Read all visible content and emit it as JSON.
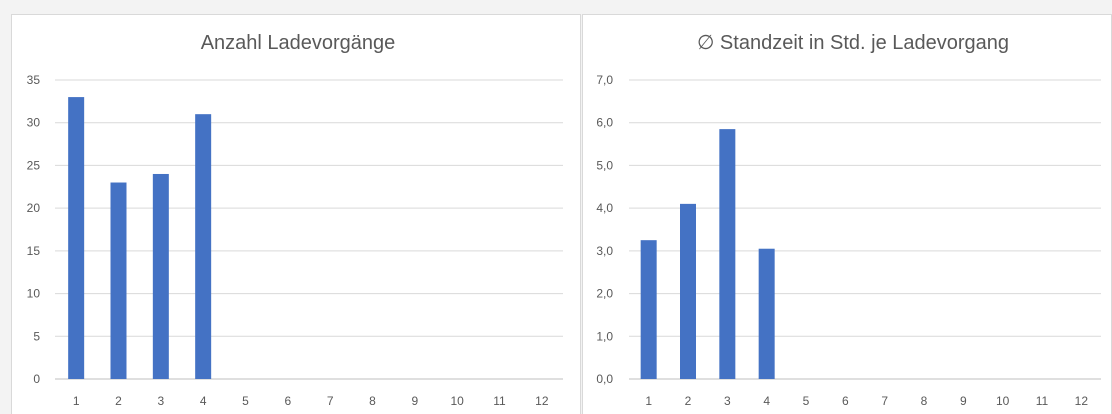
{
  "chart_data": [
    {
      "type": "bar",
      "title": "Anzahl Ladevorgänge",
      "xlabel": "",
      "ylabel": "",
      "categories": [
        "1",
        "2",
        "3",
        "4",
        "5",
        "6",
        "7",
        "8",
        "9",
        "10",
        "11",
        "12"
      ],
      "values": [
        33,
        23,
        24,
        31,
        null,
        null,
        null,
        null,
        null,
        null,
        null,
        null
      ],
      "ylim": [
        0,
        35
      ],
      "yticks": [
        "0",
        "5",
        "10",
        "15",
        "20",
        "25",
        "30",
        "35"
      ],
      "grid": true,
      "bar_color": "#4472c4"
    },
    {
      "type": "bar",
      "title": "∅ Standzeit in Std. je Ladevorgang",
      "xlabel": "",
      "ylabel": "",
      "categories": [
        "1",
        "2",
        "3",
        "4",
        "5",
        "6",
        "7",
        "8",
        "9",
        "10",
        "11",
        "12"
      ],
      "values": [
        3.25,
        4.1,
        5.85,
        3.05,
        null,
        null,
        null,
        null,
        null,
        null,
        null,
        null
      ],
      "ylim": [
        0,
        7
      ],
      "yticks": [
        "0,0",
        "1,0",
        "2,0",
        "3,0",
        "4,0",
        "5,0",
        "6,0",
        "7,0"
      ],
      "grid": true,
      "bar_color": "#4472c4"
    }
  ]
}
